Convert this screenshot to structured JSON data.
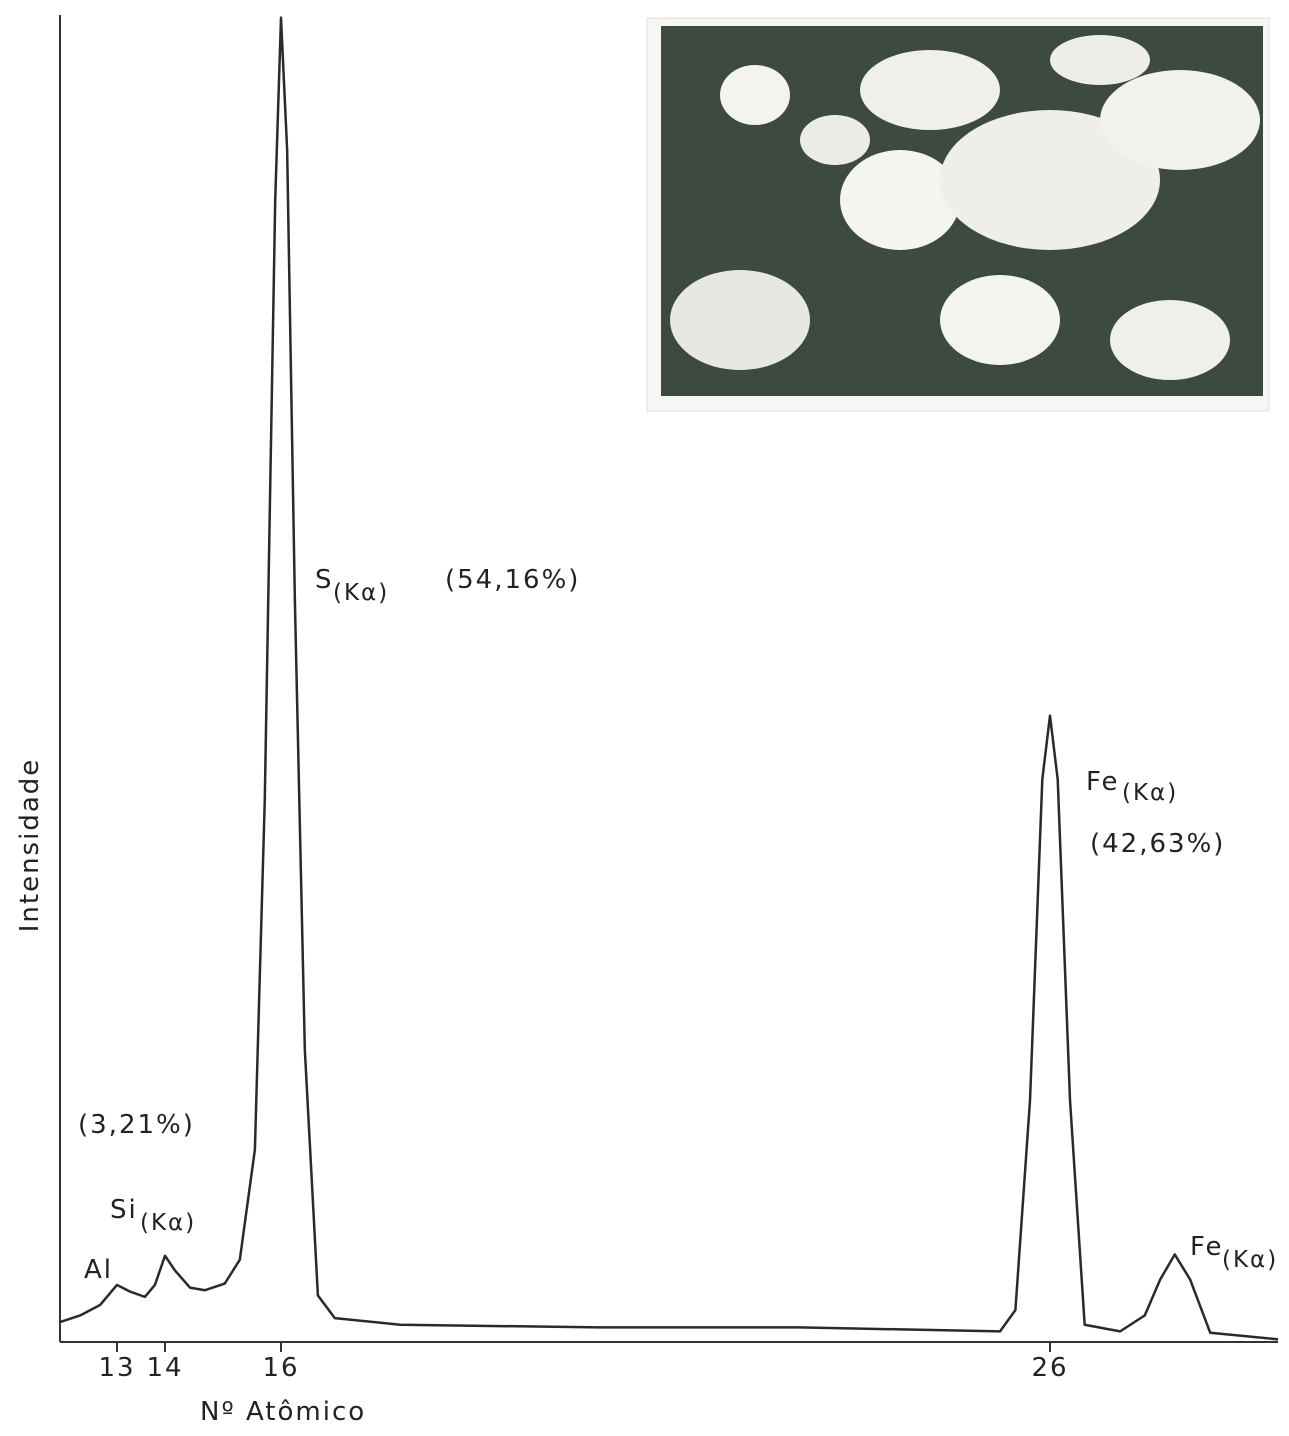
{
  "chart_data": {
    "type": "line",
    "x_label": "Nº Atômico",
    "y_label": "Intensidade",
    "xlim": [
      11.81,
      28.96
    ],
    "xticks": [
      13,
      14,
      16,
      26
    ],
    "ylim": [
      0,
      100
    ],
    "color": "#2a2a2a",
    "series": [
      {
        "name": "Intensidade",
        "x": [
          11.81,
          12.23,
          12.65,
          13.0,
          13.27,
          13.58,
          13.79,
          14.0,
          14.17,
          14.43,
          14.69,
          15.03,
          15.29,
          15.55,
          15.72,
          15.9,
          16.0,
          16.08,
          16.18,
          16.31,
          16.48,
          16.7,
          17.55,
          20.14,
          22.74,
          25.35,
          25.55,
          25.74,
          25.9,
          26.0,
          26.1,
          26.26,
          26.45,
          26.91,
          27.23,
          27.43,
          27.62,
          27.82,
          28.08,
          28.96
        ],
        "values": [
          1.5,
          2.0,
          2.8,
          4.3,
          3.8,
          3.4,
          4.3,
          6.5,
          5.4,
          4.1,
          3.9,
          4.4,
          6.2,
          14.5,
          40.8,
          86.0,
          99.8,
          89.8,
          56.0,
          22.0,
          3.5,
          1.8,
          1.3,
          1.1,
          1.1,
          0.8,
          2.4,
          18.2,
          42.4,
          47.2,
          42.4,
          18.2,
          1.3,
          0.8,
          2.0,
          4.7,
          6.6,
          4.7,
          0.7,
          0.2
        ]
      }
    ],
    "annotations": [
      {
        "element": "Al"
      },
      {
        "element": "Si",
        "line": "(Kα)",
        "percent": "(3,21%)"
      },
      {
        "element": "S",
        "line": "(Kα)",
        "percent": "(54,16%)"
      },
      {
        "element": "Fe",
        "line": "(Kα)",
        "percent": "(42,63%)"
      },
      {
        "element": "Fe",
        "line": "(Kα)"
      }
    ]
  }
}
